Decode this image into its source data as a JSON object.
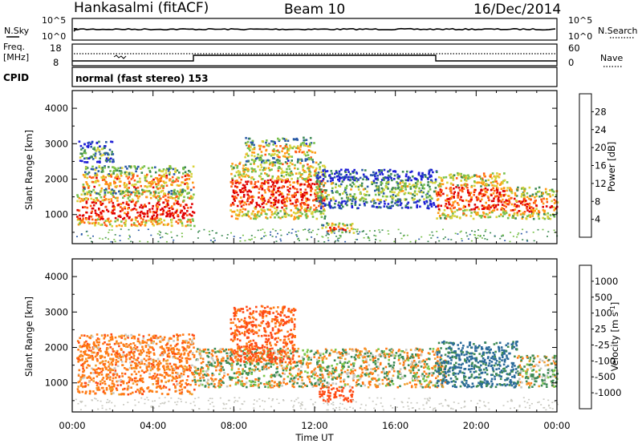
{
  "header": {
    "station": "Hankasalmi (fitACF)",
    "beam": "Beam 10",
    "date": "16/Dec/2014"
  },
  "status_panel": {
    "nsky_label": "N.Sky",
    "nsky_ticks": [
      "10^5",
      "10^0"
    ],
    "nsearch_label": "N.Search",
    "nsearch_ticks": [
      "10^5",
      "10^0"
    ],
    "freq_label": "Freq.",
    "freq_unit": "[MHz]",
    "freq_ticks": [
      "18",
      "8"
    ],
    "nave_label": "Nave",
    "nave_ticks": [
      "60",
      "0"
    ],
    "cpid_label": "CPID",
    "cpid_text": "normal (fast stereo) 153",
    "step_times_hours": [
      0,
      6,
      18,
      24
    ],
    "step_levels": [
      "low",
      "high",
      "low"
    ]
  },
  "chart_data": [
    {
      "type": "heatmap",
      "title": "",
      "quantity": "power",
      "ylabel": "Slant Range [km]",
      "xlabel": "",
      "xlim": [
        0,
        24
      ],
      "ylim": [
        180,
        4500
      ],
      "xticks": [
        "00:00",
        "04:00",
        "08:00",
        "12:00",
        "16:00",
        "20:00",
        "00:00"
      ],
      "yticks": [
        "1000",
        "2000",
        "3000",
        "4000"
      ],
      "colorbar": {
        "label": "Power [dB]",
        "ticks": [
          "4",
          "8",
          "12",
          "16",
          "20",
          "24",
          "28"
        ],
        "range": [
          0,
          30
        ],
        "colors": [
          "#1f1fd6",
          "#2b5aa8",
          "#3e8a55",
          "#78c04a",
          "#d8d23a",
          "#ff9a14",
          "#ff5a14",
          "#e00000"
        ]
      },
      "scatter_regions": [
        {
          "t": [
            0.2,
            6.0
          ],
          "r": [
            700,
            1700
          ],
          "power": 26
        },
        {
          "t": [
            0.5,
            6.0
          ],
          "r": [
            1600,
            2400
          ],
          "power": 18
        },
        {
          "t": [
            0.3,
            2.0
          ],
          "r": [
            2500,
            3100
          ],
          "power": 8
        },
        {
          "t": [
            7.8,
            12.5
          ],
          "r": [
            900,
            2500
          ],
          "power": 24
        },
        {
          "t": [
            8.5,
            12.0
          ],
          "r": [
            2500,
            3200
          ],
          "power": 16
        },
        {
          "t": [
            12.3,
            13.9
          ],
          "r": [
            500,
            800
          ],
          "power": 20
        },
        {
          "t": [
            12.0,
            18.0
          ],
          "r": [
            1200,
            2300
          ],
          "power": 10
        },
        {
          "t": [
            18.0,
            21.5
          ],
          "r": [
            900,
            2200
          ],
          "power": 24
        },
        {
          "t": [
            21.5,
            24.0
          ],
          "r": [
            900,
            1800
          ],
          "power": 22
        }
      ]
    },
    {
      "type": "heatmap",
      "title": "",
      "quantity": "velocity",
      "ylabel": "Slant Range [km]",
      "xlabel": "Time UT",
      "xlim": [
        0,
        24
      ],
      "ylim": [
        180,
        4500
      ],
      "xticks": [
        "00:00",
        "04:00",
        "08:00",
        "12:00",
        "16:00",
        "20:00",
        "00:00"
      ],
      "yticks": [
        "1000",
        "2000",
        "3000",
        "4000"
      ],
      "colorbar": {
        "label": "Velocity [m s",
        "label_superscript": "-1",
        "label_close": "]",
        "ticks": [
          "1000",
          "500",
          "100",
          "25",
          "-25",
          "-100",
          "-500",
          "-1000"
        ],
        "colors": [
          "#1f3fd6",
          "#2a6a9a",
          "#3e8a55",
          "#7cc84a",
          "#c8c8c0",
          "#f0a030",
          "#ff7a14",
          "#ff4a14",
          "#e00000"
        ]
      },
      "scatter_regions": [
        {
          "t": [
            0.2,
            6.0
          ],
          "r": [
            700,
            2400
          ],
          "velocity": -150
        },
        {
          "t": [
            6.0,
            18.5
          ],
          "r": [
            900,
            2000
          ],
          "velocity": 0
        },
        {
          "t": [
            7.8,
            11.0
          ],
          "r": [
            1600,
            3200
          ],
          "velocity": -300
        },
        {
          "t": [
            12.2,
            13.9
          ],
          "r": [
            500,
            900
          ],
          "velocity": -400
        },
        {
          "t": [
            18.0,
            22.0
          ],
          "r": [
            900,
            2200
          ],
          "velocity": 300
        },
        {
          "t": [
            22.0,
            24.0
          ],
          "r": [
            900,
            1800
          ],
          "velocity": 50
        }
      ]
    }
  ]
}
